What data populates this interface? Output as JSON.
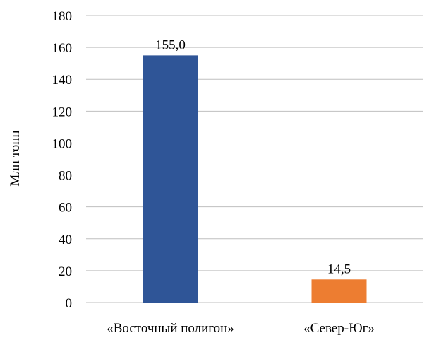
{
  "chart_data": {
    "type": "bar",
    "categories": [
      "«Восточный полигон»",
      "«Север-Юг»"
    ],
    "values": [
      155.0,
      14.5
    ],
    "data_labels": [
      "155,0",
      "14,5"
    ],
    "colors": [
      "#2F5597",
      "#ED7D31"
    ],
    "title": "",
    "xlabel": "",
    "ylabel": "Млн тонн",
    "ylim": [
      0,
      180
    ],
    "yticks": [
      0,
      20,
      40,
      60,
      80,
      100,
      120,
      140,
      160,
      180
    ],
    "grid": true,
    "legend": "none"
  }
}
